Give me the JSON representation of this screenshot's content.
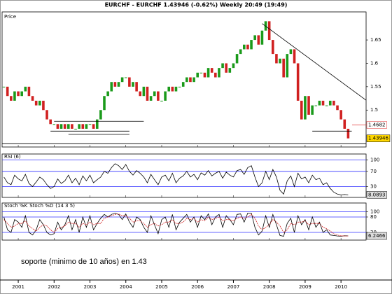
{
  "title": "EURCHF - EURCHF    1.43946 (-0.62%)    Weekly  20:49 (19:49)",
  "annotation": "soporte (minimo de 10 años) en 1.43",
  "x": [
    2000.6,
    2000.7,
    2000.8,
    2000.9,
    2001.0,
    2001.1,
    2001.2,
    2001.3,
    2001.4,
    2001.5,
    2001.6,
    2001.7,
    2001.8,
    2001.9,
    2002.0,
    2002.1,
    2002.2,
    2002.3,
    2002.4,
    2002.5,
    2002.6,
    2002.7,
    2002.8,
    2002.9,
    2003.0,
    2003.1,
    2003.2,
    2003.3,
    2003.4,
    2003.5,
    2003.6,
    2003.7,
    2003.8,
    2003.9,
    2004.0,
    2004.1,
    2004.2,
    2004.3,
    2004.4,
    2004.5,
    2004.6,
    2004.7,
    2004.8,
    2004.9,
    2005.0,
    2005.1,
    2005.2,
    2005.3,
    2005.4,
    2005.5,
    2005.6,
    2005.7,
    2005.8,
    2005.9,
    2006.0,
    2006.1,
    2006.2,
    2006.3,
    2006.4,
    2006.5,
    2006.6,
    2006.7,
    2006.8,
    2006.9,
    2007.0,
    2007.1,
    2007.2,
    2007.3,
    2007.4,
    2007.5,
    2007.6,
    2007.7,
    2007.8,
    2007.9,
    2008.0,
    2008.1,
    2008.2,
    2008.3,
    2008.4,
    2008.5,
    2008.6,
    2008.7,
    2008.8,
    2008.9,
    2009.0,
    2009.1,
    2009.2,
    2009.3,
    2009.4,
    2009.5,
    2009.6,
    2009.7,
    2009.8,
    2009.9,
    2010.0,
    2010.1,
    2010.2
  ],
  "xlim": [
    2000.55,
    2010.7
  ],
  "xticks": [
    2001,
    2002,
    2003,
    2004,
    2005,
    2006,
    2007,
    2008,
    2009,
    2010
  ],
  "chart_data": [
    {
      "type": "candlestick",
      "title": "Price",
      "up_color": "#1a9a1a",
      "down_color": "#d02020",
      "values": [
        1.55,
        1.53,
        1.52,
        1.54,
        1.53,
        1.54,
        1.55,
        1.53,
        1.52,
        1.51,
        1.52,
        1.5,
        1.48,
        1.47,
        1.47,
        1.46,
        1.47,
        1.46,
        1.47,
        1.46,
        1.46,
        1.47,
        1.46,
        1.47,
        1.47,
        1.46,
        1.48,
        1.5,
        1.53,
        1.54,
        1.56,
        1.55,
        1.56,
        1.57,
        1.57,
        1.55,
        1.56,
        1.54,
        1.53,
        1.55,
        1.52,
        1.53,
        1.54,
        1.52,
        1.52,
        1.54,
        1.55,
        1.54,
        1.55,
        1.55,
        1.56,
        1.57,
        1.56,
        1.57,
        1.58,
        1.58,
        1.57,
        1.59,
        1.58,
        1.57,
        1.59,
        1.6,
        1.58,
        1.59,
        1.6,
        1.62,
        1.63,
        1.64,
        1.63,
        1.65,
        1.66,
        1.64,
        1.67,
        1.69,
        1.65,
        1.62,
        1.6,
        1.61,
        1.57,
        1.62,
        1.63,
        1.6,
        1.52,
        1.48,
        1.53,
        1.49,
        1.51,
        1.51,
        1.52,
        1.51,
        1.51,
        1.52,
        1.51,
        1.5,
        1.48,
        1.46,
        1.43946
      ],
      "ylim": [
        1.421,
        1.71
      ],
      "yticks": [
        1.5,
        1.55,
        1.6,
        1.65
      ],
      "lines": [
        {
          "x": [
            2007.8,
            2010.7
          ],
          "y": [
            1.685,
            1.521
          ]
        },
        {
          "x": [
            2002.0,
            2004.5
          ],
          "y": [
            1.476,
            1.476
          ]
        },
        {
          "x": [
            2001.9,
            2004.1
          ],
          "y": [
            1.455,
            1.455
          ]
        },
        {
          "x": [
            2002.4,
            2004.1
          ],
          "y": [
            1.448,
            1.448
          ]
        },
        {
          "x": [
            2009.2,
            2010.3
          ],
          "y": [
            1.455,
            1.455
          ]
        },
        {
          "x": [
            2000.55,
            2010.7
          ],
          "y": [
            1.428,
            1.428
          ]
        }
      ],
      "marker": {
        "value": 1.4682,
        "color": "#e03030"
      },
      "last_color": "#ffd700"
    },
    {
      "type": "line",
      "title": "RSI (6)",
      "color": "#000000",
      "level_color": "#3333ff",
      "values": [
        55,
        40,
        35,
        60,
        50,
        45,
        62,
        38,
        30,
        42,
        55,
        48,
        35,
        25,
        30,
        50,
        38,
        45,
        60,
        40,
        52,
        35,
        58,
        45,
        60,
        40,
        48,
        55,
        70,
        65,
        80,
        90,
        85,
        75,
        88,
        70,
        60,
        72,
        65,
        55,
        40,
        62,
        48,
        35,
        55,
        60,
        45,
        65,
        40,
        52,
        58,
        70,
        55,
        62,
        48,
        66,
        60,
        72,
        58,
        65,
        70,
        52,
        68,
        60,
        55,
        72,
        75,
        62,
        80,
        85,
        55,
        30,
        40,
        70,
        48,
        75,
        55,
        20,
        10,
        45,
        58,
        30,
        65,
        50,
        55,
        40,
        60,
        48,
        52,
        35,
        40,
        25,
        15,
        10,
        8,
        9,
        8.0893
      ],
      "ylim": [
        1.4,
        115.7
      ],
      "yticks": [
        30,
        70,
        100
      ],
      "last_color": "#dddddd"
    },
    {
      "type": "line",
      "title": "(14 3 5)",
      "level_color": "#3333ff",
      "series": [
        {
          "name": "Stoch %K",
          "color": "#000000",
          "values": [
            80,
            30,
            20,
            70,
            60,
            40,
            85,
            20,
            10,
            30,
            70,
            50,
            20,
            10,
            15,
            60,
            30,
            50,
            85,
            30,
            70,
            20,
            80,
            40,
            85,
            30,
            55,
            75,
            90,
            80,
            90,
            95,
            90,
            70,
            92,
            60,
            40,
            80,
            70,
            40,
            20,
            85,
            50,
            15,
            70,
            80,
            40,
            90,
            30,
            60,
            75,
            90,
            60,
            80,
            40,
            85,
            70,
            92,
            50,
            80,
            90,
            40,
            85,
            70,
            50,
            90,
            92,
            60,
            95,
            95,
            40,
            10,
            25,
            85,
            40,
            90,
            50,
            8,
            5,
            55,
            75,
            20,
            85,
            50,
            70,
            30,
            80,
            40,
            60,
            20,
            30,
            10,
            8,
            6,
            5,
            7,
            6.2466
          ]
        },
        {
          "name": "Stoch %D",
          "color": "#d02020",
          "values": [
            70,
            55,
            40,
            45,
            55,
            55,
            65,
            45,
            35,
            25,
            40,
            50,
            45,
            30,
            20,
            35,
            40,
            45,
            60,
            55,
            55,
            40,
            55,
            50,
            60,
            50,
            55,
            55,
            75,
            80,
            85,
            90,
            92,
            85,
            85,
            75,
            60,
            65,
            65,
            55,
            40,
            50,
            55,
            45,
            50,
            60,
            60,
            70,
            55,
            55,
            60,
            75,
            70,
            75,
            60,
            70,
            65,
            80,
            70,
            75,
            80,
            65,
            70,
            70,
            65,
            75,
            80,
            75,
            80,
            90,
            75,
            45,
            30,
            40,
            50,
            70,
            60,
            45,
            20,
            30,
            55,
            50,
            60,
            60,
            65,
            50,
            55,
            55,
            55,
            40,
            35,
            25,
            15,
            10,
            7,
            6,
            6
          ]
        }
      ],
      "ylim": [
        -10,
        134.5
      ],
      "yticks": [
        20,
        80,
        100
      ],
      "last_color": "#dddddd"
    }
  ]
}
